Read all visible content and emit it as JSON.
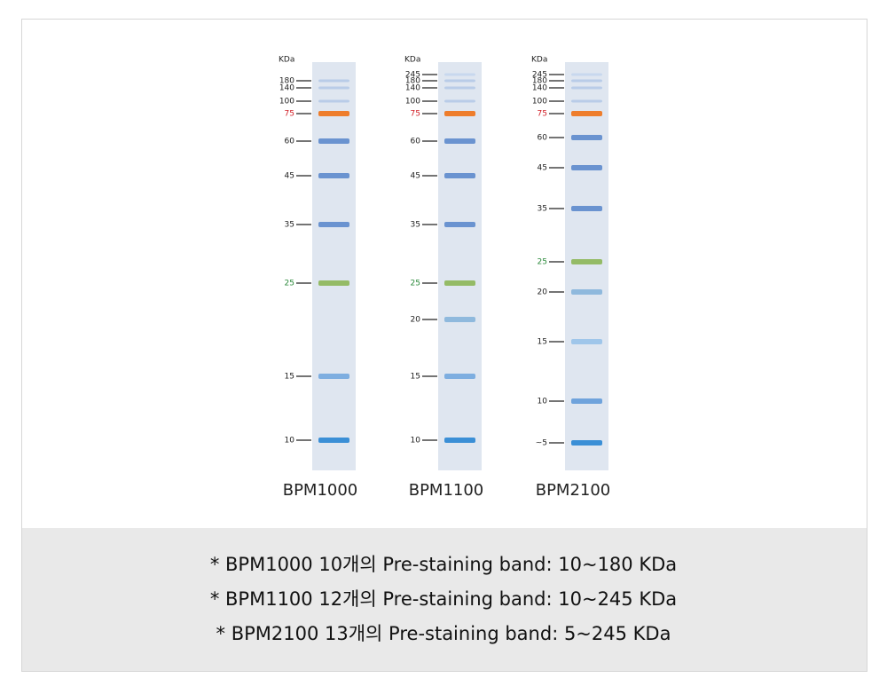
{
  "unit": "KDa",
  "ladders": [
    {
      "name": "BPM1000",
      "bands": [
        {
          "label": "180",
          "color": "#b9cce8"
        },
        {
          "label": "140",
          "color": "#b9cce8"
        },
        {
          "label": "100",
          "color": "#b9cce8"
        },
        {
          "label": "75",
          "color": "#ee7d2c",
          "label_color": "#d2232a"
        },
        {
          "label": "60",
          "color": "#6a93d0"
        },
        {
          "label": "45",
          "color": "#6a93d0"
        },
        {
          "label": "35",
          "color": "#6a93d0"
        },
        {
          "label": "25",
          "color": "#94bb66",
          "label_color": "#2c8a3c"
        },
        {
          "label": "15",
          "color": "#7eaee0"
        },
        {
          "label": "10",
          "color": "#3b8fd6"
        }
      ]
    },
    {
      "name": "BPM1100",
      "bands": [
        {
          "label": "245",
          "color": "#c8d8ee"
        },
        {
          "label": "180",
          "color": "#b9cce8"
        },
        {
          "label": "140",
          "color": "#b9cce8"
        },
        {
          "label": "100",
          "color": "#b9cce8"
        },
        {
          "label": "75",
          "color": "#ee7d2c",
          "label_color": "#d2232a"
        },
        {
          "label": "60",
          "color": "#6a93d0"
        },
        {
          "label": "45",
          "color": "#6a93d0"
        },
        {
          "label": "35",
          "color": "#6a93d0"
        },
        {
          "label": "25",
          "color": "#94bb66",
          "label_color": "#2c8a3c"
        },
        {
          "label": "20",
          "color": "#8fb9dd"
        },
        {
          "label": "15",
          "color": "#7eaee0"
        },
        {
          "label": "10",
          "color": "#3b8fd6"
        }
      ]
    },
    {
      "name": "BPM2100",
      "bands": [
        {
          "label": "245",
          "color": "#c8d8ee"
        },
        {
          "label": "180",
          "color": "#b9cce8"
        },
        {
          "label": "140",
          "color": "#b9cce8"
        },
        {
          "label": "100",
          "color": "#b9cce8"
        },
        {
          "label": "75",
          "color": "#ee7d2c",
          "label_color": "#d2232a"
        },
        {
          "label": "60",
          "color": "#6a93d0"
        },
        {
          "label": "45",
          "color": "#6a93d0"
        },
        {
          "label": "35",
          "color": "#6a93d0"
        },
        {
          "label": "25",
          "color": "#94bb66",
          "label_color": "#2c8a3c"
        },
        {
          "label": "20",
          "color": "#8fb9dd"
        },
        {
          "label": "15",
          "color": "#9fc6ea"
        },
        {
          "label": "10",
          "color": "#6fa3dc"
        },
        {
          "label": "~5",
          "color": "#3b8fd6"
        }
      ]
    }
  ],
  "notes": [
    "* BPM1000 10개의 Pre-staining band: 10~180 KDa",
    "* BPM1100 12개의 Pre-staining band: 10~245 KDa",
    "* BPM2100 13개의 Pre-staining band: 5~245 KDa"
  ]
}
